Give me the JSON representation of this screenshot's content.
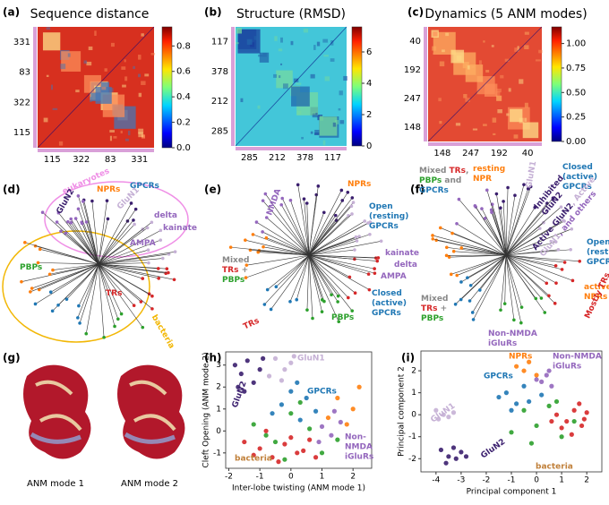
{
  "heatmaps": [
    {
      "label": "(a)",
      "title": "Sequence distance",
      "rows": [
        "331",
        "83",
        "322",
        "115"
      ],
      "cols": [
        "115",
        "322",
        "83",
        "331"
      ],
      "colorbar": {
        "lim": [
          0,
          0.95
        ],
        "ticks": [
          {
            "value": 0,
            "label": "0.0"
          },
          {
            "value": 0.2,
            "label": "0.2"
          },
          {
            "value": 0.4,
            "label": "0.4"
          },
          {
            "value": 0.6,
            "label": "0.6"
          },
          {
            "value": 0.8,
            "label": "0.8"
          }
        ]
      }
    },
    {
      "label": "(b)",
      "title": "Structure (RMSD)",
      "rows": [
        "117",
        "378",
        "212",
        "285"
      ],
      "cols": [
        "285",
        "212",
        "378",
        "117"
      ],
      "colorbar": {
        "lim": [
          0,
          7.6
        ],
        "ticks": [
          0,
          2,
          4,
          6
        ]
      }
    },
    {
      "label": "(c)",
      "title": "Dynamics (5 ANM modes)",
      "rows": [
        "40",
        "192",
        "247",
        "148"
      ],
      "cols": [
        "148",
        "247",
        "192",
        "40"
      ],
      "colorbar": {
        "lim": [
          0,
          1.17
        ],
        "ticks": [
          {
            "value": 0,
            "label": "0.00"
          },
          {
            "value": 0.25,
            "label": "0.25"
          },
          {
            "value": 0.5,
            "label": "0.50"
          },
          {
            "value": 0.75,
            "label": "0.75"
          },
          {
            "value": 1,
            "label": "1.00"
          }
        ]
      }
    }
  ],
  "trees": [
    {
      "label": "(d)",
      "labels": [
        [
          [
            {
              "text": "eukaryotes",
              "color": "#ef8fe6"
            }
          ]
        ],
        [
          [
            {
              "text": "bacteria",
              "color": "#f2b705"
            }
          ]
        ],
        [
          [
            {
              "text": "NPRs",
              "color": "#ff7f0e"
            }
          ]
        ],
        [
          [
            {
              "text": "GPCRs",
              "color": "#1f77b4"
            }
          ]
        ],
        [
          [
            {
              "text": "GluN2",
              "color": "#3b1f6e"
            }
          ]
        ],
        [
          [
            {
              "text": "GluN1",
              "color": "#c5b0d5"
            }
          ]
        ],
        [
          [
            {
              "text": "delta",
              "color": "#9467bd"
            }
          ]
        ],
        [
          [
            {
              "text": "kainate",
              "color": "#9467bd"
            }
          ]
        ],
        [
          [
            {
              "text": "AMPA",
              "color": "#9467bd"
            }
          ]
        ],
        [
          [
            {
              "text": "PBPs",
              "color": "#2ca02c"
            }
          ]
        ],
        [
          [
            {
              "text": "TRs",
              "color": "#d62728"
            }
          ]
        ]
      ]
    },
    {
      "label": "(e)",
      "labels": [
        [
          [
            {
              "text": "NMDA",
              "color": "#9467bd"
            }
          ]
        ],
        [
          [
            {
              "text": "NPRs",
              "color": "#ff7f0e"
            }
          ]
        ],
        [
          [
            {
              "text": "Open",
              "color": "#1f77b4"
            }
          ],
          [
            {
              "text": "(resting)",
              "color": "#1f77b4"
            }
          ],
          [
            {
              "text": "GPCRs",
              "color": "#1f77b4"
            }
          ]
        ],
        [
          [
            {
              "text": "Mixed",
              "color": "#888888"
            }
          ],
          [
            {
              "text": "TRs",
              "color": "#d62728"
            },
            {
              "text": " +",
              "color": "#888888"
            }
          ],
          [
            {
              "text": "PBPs",
              "color": "#2ca02c"
            }
          ]
        ],
        [
          [
            {
              "text": "kainate",
              "color": "#9467bd"
            }
          ]
        ],
        [
          [
            {
              "text": "delta",
              "color": "#9467bd"
            }
          ]
        ],
        [
          [
            {
              "text": "AMPA",
              "color": "#9467bd"
            }
          ]
        ],
        [
          [
            {
              "text": "Closed",
              "color": "#1f77b4"
            }
          ],
          [
            {
              "text": "(active)",
              "color": "#1f77b4"
            }
          ],
          [
            {
              "text": "GPCRs",
              "color": "#1f77b4"
            }
          ]
        ],
        [
          [
            {
              "text": "PBPs",
              "color": "#2ca02c"
            }
          ]
        ],
        [
          [
            {
              "text": "TRs",
              "color": "#d62728"
            }
          ]
        ]
      ]
    },
    {
      "label": "(f)",
      "labels": [
        [
          [
            {
              "text": "Mixed ",
              "color": "#888888"
            },
            {
              "text": "TRs",
              "color": "#d62728"
            },
            {
              "text": ",",
              "color": "#888888"
            }
          ],
          [
            {
              "text": "PBPs",
              "color": "#2ca02c"
            },
            {
              "text": " and",
              "color": "#888888"
            }
          ],
          [
            {
              "text": "GPCRs",
              "color": "#1f77b4"
            }
          ]
        ],
        [
          [
            {
              "text": "resting",
              "color": "#ff7f0e"
            }
          ],
          [
            {
              "text": "NPR",
              "color": "#ff7f0e"
            }
          ]
        ],
        [
          [
            {
              "text": "GluN1",
              "color": "#c5b0d5"
            }
          ]
        ],
        [
          [
            {
              "text": "Closed",
              "color": "#1f77b4"
            }
          ],
          [
            {
              "text": "(active)",
              "color": "#1f77b4"
            }
          ],
          [
            {
              "text": "GPCRs",
              "color": "#1f77b4"
            }
          ]
        ],
        [
          [
            {
              "text": "Inhibited",
              "color": "#3b1f6e"
            }
          ],
          [
            {
              "text": "GluN2",
              "color": "#3b1f6e"
            }
          ]
        ],
        [
          [
            {
              "text": "Active GluN2",
              "color": "#3b1f6e"
            },
            {
              "text": ", Active",
              "color": "#c5b0d5"
            }
          ],
          [
            {
              "text": "GluN1",
              "color": "#c5b0d5"
            },
            {
              "text": ", and others",
              "color": "#9467bd"
            }
          ]
        ],
        [
          [
            {
              "text": "Open",
              "color": "#1f77b4"
            }
          ],
          [
            {
              "text": "(resting)",
              "color": "#1f77b4"
            }
          ],
          [
            {
              "text": "GPCRs",
              "color": "#1f77b4"
            }
          ]
        ],
        [
          [
            {
              "text": "active",
              "color": "#ff7f0e"
            }
          ],
          [
            {
              "text": "NPRs",
              "color": "#ff7f0e"
            }
          ]
        ],
        [
          [
            {
              "text": "Mixed",
              "color": "#888888"
            }
          ],
          [
            {
              "text": "TRs",
              "color": "#d62728"
            },
            {
              "text": " +",
              "color": "#888888"
            }
          ],
          [
            {
              "text": "PBPs",
              "color": "#2ca02c"
            }
          ]
        ],
        [
          [
            {
              "text": "Non-NMDA",
              "color": "#9467bd"
            }
          ],
          [
            {
              "text": "iGluRs",
              "color": "#9467bd"
            }
          ]
        ],
        [
          [
            {
              "text": "Mostly TRs",
              "color": "#d62728"
            }
          ]
        ]
      ]
    }
  ],
  "structures": {
    "label": "(g)",
    "captions": [
      "ANM mode 1",
      "ANM mode 2"
    ]
  },
  "scatters": [
    {
      "type": "scatter",
      "label": "(h)",
      "xlabel": "Inter-lobe twisting (ANM mode 1)",
      "ylabel": "Cleft Opening (ANM mode 2)",
      "xlim": [
        -2.1,
        2.6
      ],
      "ylim": [
        -1.7,
        3.6
      ],
      "xticks": [
        -2,
        -1,
        0,
        1,
        2
      ],
      "yticks": [
        -1,
        0,
        1,
        2,
        3
      ],
      "series": [
        {
          "color": "#3b1f6e",
          "x": [
            -1.8,
            -1.6,
            -1.4,
            -1.2,
            -1.0,
            -1.5,
            -0.9,
            -1.7
          ],
          "values": [
            3.0,
            2.6,
            3.2,
            2.2,
            2.8,
            1.8,
            3.3,
            2.0
          ]
        },
        {
          "color": "#c5b0d5",
          "x": [
            -0.5,
            -0.2,
            0.0,
            -0.7,
            -0.3,
            0.1
          ],
          "values": [
            3.3,
            2.8,
            3.1,
            2.5,
            2.3,
            3.4
          ]
        },
        {
          "color": "#1f77b4",
          "x": [
            -0.3,
            0.0,
            0.3,
            0.5,
            -0.6,
            0.2,
            0.8
          ],
          "values": [
            1.2,
            1.8,
            0.5,
            1.5,
            0.8,
            2.2,
            0.9
          ]
        },
        {
          "color": "#ff7f0e",
          "x": [
            1.5,
            2.0,
            2.2,
            1.8,
            1.2
          ],
          "values": [
            1.5,
            1.0,
            2.0,
            0.3,
            0.6
          ]
        },
        {
          "color": "#9467bd",
          "x": [
            1.0,
            1.3,
            1.6,
            0.9,
            1.4
          ],
          "values": [
            0.2,
            -0.2,
            0.4,
            -0.5,
            0.9
          ]
        },
        {
          "color": "#2ca02c",
          "x": [
            -1.2,
            -0.5,
            0.0,
            0.6,
            1.0,
            -0.8,
            0.3,
            1.5,
            -0.2
          ],
          "values": [
            0.3,
            -0.5,
            0.8,
            0.1,
            -1.0,
            -0.2,
            1.3,
            -0.4,
            -1.3
          ]
        },
        {
          "color": "#d62728",
          "x": [
            -1.5,
            -1.0,
            -0.6,
            -0.2,
            0.2,
            0.6,
            -0.8,
            -0.4,
            0.0,
            0.4,
            -1.2,
            0.8
          ],
          "values": [
            -0.5,
            -0.8,
            -1.2,
            -0.6,
            -1.0,
            -0.4,
            0.0,
            -1.4,
            -0.3,
            -0.9,
            -1.1,
            -1.2
          ]
        }
      ],
      "annotations": [
        {
          "text": "GluN1",
          "color": "#c5b0d5"
        },
        {
          "text": "GluN2",
          "color": "#3b1f6e"
        },
        {
          "text": "GPCRs",
          "color": "#1f77b4"
        },
        {
          "text": "Non-",
          "color": "#9467bd"
        },
        {
          "text": "NMDA",
          "color": "#9467bd"
        },
        {
          "text": "iGluRs",
          "color": "#9467bd"
        },
        {
          "text": "bacteria",
          "color": "#c0803a"
        }
      ]
    },
    {
      "type": "scatter",
      "label": "(i)",
      "xlabel": "Principal component 1",
      "ylabel": "Principal component 2",
      "xlim": [
        -4.6,
        2.6
      ],
      "ylim": [
        -2.6,
        2.9
      ],
      "xticks": [
        -4,
        -3,
        -2,
        -1,
        0,
        1,
        2
      ],
      "yticks": [
        -2,
        -1,
        0,
        1,
        2
      ],
      "series": [
        {
          "color": "#3b1f6e",
          "x": [
            -3.8,
            -3.5,
            -3.2,
            -3.0,
            -3.6,
            -2.8,
            -3.3
          ],
          "values": [
            -1.6,
            -1.9,
            -2.0,
            -1.7,
            -2.2,
            -1.9,
            -1.5
          ]
        },
        {
          "color": "#c5b0d5",
          "x": [
            -4.0,
            -3.7,
            -3.5,
            -3.9,
            -3.3
          ],
          "values": [
            0.2,
            0.0,
            -0.1,
            -0.2,
            0.1
          ]
        },
        {
          "color": "#1f77b4",
          "x": [
            -1.5,
            -1.2,
            -0.8,
            -0.5,
            -1.0,
            -0.3,
            0.2
          ],
          "values": [
            0.8,
            1.0,
            0.5,
            1.3,
            0.2,
            0.6,
            0.9
          ]
        },
        {
          "color": "#ff7f0e",
          "x": [
            -0.8,
            -0.5,
            -0.3,
            0.0
          ],
          "values": [
            2.2,
            2.0,
            2.4,
            1.8
          ]
        },
        {
          "color": "#9467bd",
          "x": [
            0.2,
            0.4,
            0.6,
            0.0,
            0.5
          ],
          "values": [
            1.5,
            1.8,
            1.3,
            1.6,
            2.0
          ]
        },
        {
          "color": "#2ca02c",
          "x": [
            -1.0,
            -0.5,
            0.0,
            0.5,
            1.0,
            1.5,
            -0.2,
            0.8
          ],
          "values": [
            -0.8,
            0.2,
            -0.5,
            0.4,
            -1.0,
            -0.3,
            -1.3,
            0.6
          ]
        },
        {
          "color": "#d62728",
          "x": [
            0.8,
            1.2,
            1.5,
            1.8,
            2.0,
            1.0,
            1.4,
            1.7,
            0.6,
            1.9
          ],
          "values": [
            0.0,
            -0.3,
            0.2,
            -0.5,
            0.1,
            -0.6,
            -0.9,
            0.5,
            -0.3,
            -0.2
          ]
        }
      ],
      "annotations": [
        {
          "text": "NPRs",
          "color": "#ff7f0e"
        },
        {
          "text": "Non-NMDA",
          "color": "#9467bd"
        },
        {
          "text": "iGluRs",
          "color": "#9467bd"
        },
        {
          "text": "GPCRs",
          "color": "#1f77b4"
        },
        {
          "text": "GluN1",
          "color": "#c5b0d5"
        },
        {
          "text": "GluN2",
          "color": "#3b1f6e"
        },
        {
          "text": "bacteria",
          "color": "#c0803a"
        }
      ]
    }
  ]
}
